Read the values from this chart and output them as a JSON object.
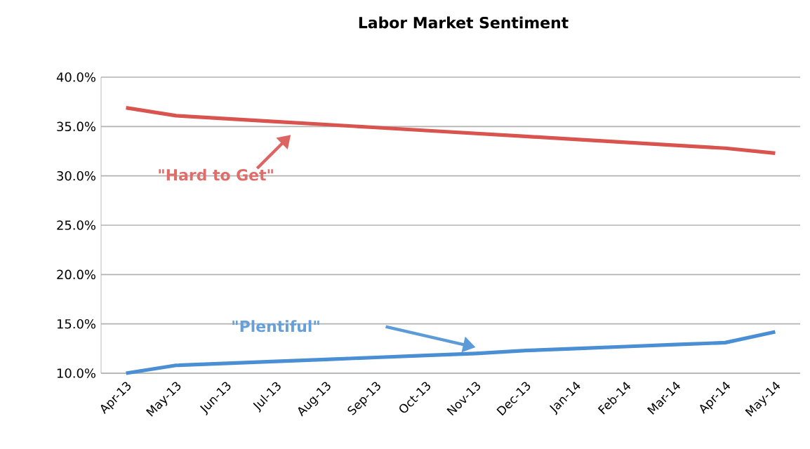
{
  "chart_data": {
    "type": "line",
    "title": "Labor Market Sentiment",
    "categories": [
      "Apr-13",
      "May-13",
      "Jun-13",
      "Jul-13",
      "Aug-13",
      "Sep-13",
      "Oct-13",
      "Nov-13",
      "Dec-13",
      "Jan-14",
      "Feb-14",
      "Mar-14",
      "Apr-14",
      "May-14"
    ],
    "series": [
      {
        "name": "\"Hard to Get\"",
        "color": "#d9534f",
        "values": [
          36.9,
          36.1,
          35.8,
          35.5,
          35.2,
          34.9,
          34.6,
          34.3,
          34.0,
          33.7,
          33.4,
          33.1,
          32.8,
          32.3
        ]
      },
      {
        "name": "\"Plentiful\"",
        "color": "#4a8fd4",
        "values": [
          10.0,
          10.8,
          11.0,
          11.2,
          11.4,
          11.6,
          11.8,
          12.0,
          12.3,
          12.5,
          12.7,
          12.9,
          13.1,
          14.2
        ]
      }
    ],
    "ylim": [
      10,
      40
    ],
    "yticks": [
      {
        "value": 10,
        "label": "10.0%"
      },
      {
        "value": 15,
        "label": "15.0%"
      },
      {
        "value": 20,
        "label": "20.0%"
      },
      {
        "value": 25,
        "label": "25.0%"
      },
      {
        "value": 30,
        "label": "30.0%"
      },
      {
        "value": 35,
        "label": "35.0%"
      },
      {
        "value": 40,
        "label": "40.0%"
      }
    ],
    "grid": "y",
    "marker": "none",
    "line_style": "solid"
  }
}
